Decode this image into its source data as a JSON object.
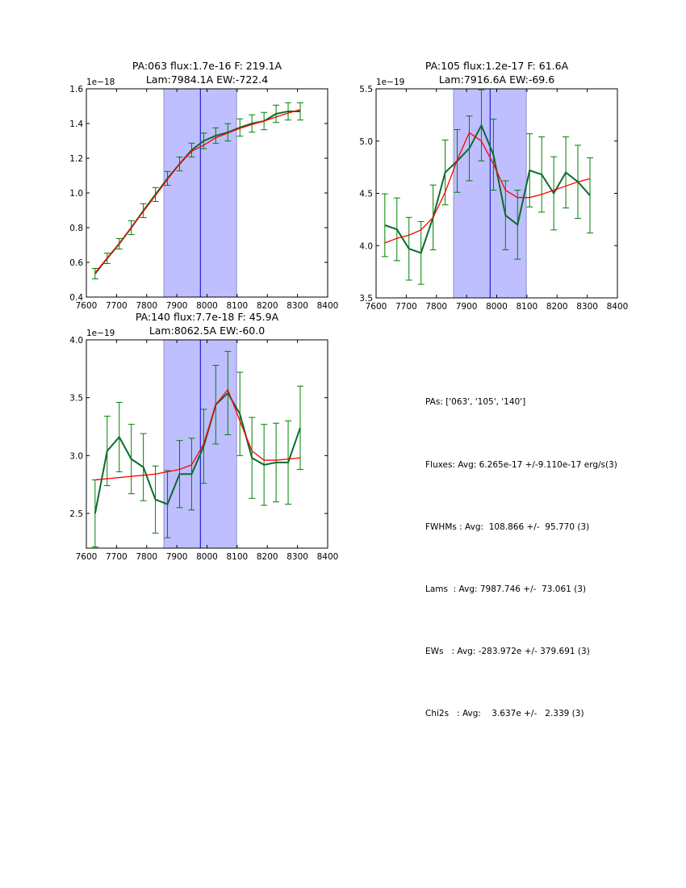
{
  "colors": {
    "band": "#bfbfff",
    "band_edge": "#8f8fcf",
    "marker_line": "#0000c8",
    "data_line": "#0a6b2e",
    "errorbar": "#008000",
    "fit_line": "#ff0000"
  },
  "chart_data": [
    {
      "type": "line",
      "title_line1": "PA:063 flux:1.7e-16 F: 219.1A",
      "title_line2": "Lam:7984.1A EW:-722.4",
      "y_offset_label": "1e−18",
      "xlim": [
        7600,
        8400
      ],
      "ylim": [
        0.4,
        1.6
      ],
      "xticks": [
        7600,
        7700,
        7800,
        7900,
        8000,
        8100,
        8200,
        8300,
        8400
      ],
      "xtick_labels": [
        "7600",
        "7700",
        "7800",
        "7900",
        "8000",
        "8100",
        "8200",
        "8300",
        "8400"
      ],
      "yticks": [
        0.4,
        0.6,
        0.8,
        1.0,
        1.2,
        1.4,
        1.6
      ],
      "ytick_labels": [
        "0.4",
        "0.6",
        "0.8",
        "1.0",
        "1.2",
        "1.4",
        "1.6"
      ],
      "band": [
        7857,
        8098
      ],
      "marker_x": 7978,
      "x": [
        7629,
        7669,
        7709,
        7749,
        7789,
        7829,
        7869,
        7909,
        7949,
        7989,
        8029,
        8069,
        8109,
        8149,
        8189,
        8229,
        8269,
        8309
      ],
      "series": [
        {
          "name": "data",
          "values": [
            0.535,
            0.623,
            0.707,
            0.8,
            0.898,
            0.991,
            1.084,
            1.167,
            1.247,
            1.3,
            1.33,
            1.349,
            1.377,
            1.4,
            1.414,
            1.456,
            1.47,
            1.47
          ],
          "errors": [
            0.03,
            0.03,
            0.03,
            0.04,
            0.04,
            0.04,
            0.04,
            0.04,
            0.04,
            0.045,
            0.045,
            0.05,
            0.05,
            0.05,
            0.05,
            0.05,
            0.05,
            0.05
          ]
        },
        {
          "name": "fit",
          "values": [
            0.54,
            0.625,
            0.71,
            0.8,
            0.893,
            0.985,
            1.078,
            1.165,
            1.24,
            1.275,
            1.318,
            1.345,
            1.372,
            1.394,
            1.414,
            1.438,
            1.46,
            1.48
          ]
        }
      ]
    },
    {
      "type": "line",
      "title_line1": "PA:105 flux:1.2e-17 F: 61.6A",
      "title_line2": "Lam:7916.6A EW:-69.6",
      "y_offset_label": "1e−19",
      "xlim": [
        7600,
        8400
      ],
      "ylim": [
        3.5,
        5.5
      ],
      "xticks": [
        7600,
        7700,
        7800,
        7900,
        8000,
        8100,
        8200,
        8300,
        8400
      ],
      "xtick_labels": [
        "7600",
        "7700",
        "7800",
        "7900",
        "8000",
        "8100",
        "8200",
        "8300",
        "8400"
      ],
      "yticks": [
        3.5,
        4.0,
        4.5,
        5.0,
        5.5
      ],
      "ytick_labels": [
        "3.5",
        "4.0",
        "4.5",
        "5.0",
        "5.5"
      ],
      "band": [
        7857,
        8098
      ],
      "marker_x": 7978,
      "x": [
        7629,
        7669,
        7709,
        7749,
        7789,
        7829,
        7869,
        7909,
        7949,
        7989,
        8029,
        8069,
        8109,
        8149,
        8189,
        8229,
        8269,
        8309
      ],
      "series": [
        {
          "name": "data",
          "values": [
            4.195,
            4.156,
            3.97,
            3.93,
            4.27,
            4.7,
            4.81,
            4.93,
            5.15,
            4.87,
            4.29,
            4.2,
            4.72,
            4.68,
            4.5,
            4.7,
            4.61,
            4.48
          ],
          "errors": [
            0.3,
            0.3,
            0.3,
            0.3,
            0.31,
            0.31,
            0.3,
            0.31,
            0.34,
            0.34,
            0.33,
            0.33,
            0.35,
            0.36,
            0.35,
            0.34,
            0.35,
            0.36
          ]
        },
        {
          "name": "fit",
          "values": [
            4.025,
            4.07,
            4.1,
            4.15,
            4.27,
            4.51,
            4.82,
            5.08,
            5.0,
            4.78,
            4.53,
            4.46,
            4.46,
            4.49,
            4.53,
            4.57,
            4.61,
            4.64
          ]
        }
      ]
    },
    {
      "type": "line",
      "title_line1": "PA:140 flux:7.7e-18 F: 45.9A",
      "title_line2": "Lam:8062.5A EW:-60.0",
      "y_offset_label": "1e−19",
      "xlim": [
        7600,
        8400
      ],
      "ylim": [
        2.2,
        4.0
      ],
      "xticks": [
        7600,
        7700,
        7800,
        7900,
        8000,
        8100,
        8200,
        8300,
        8400
      ],
      "xtick_labels": [
        "7600",
        "7700",
        "7800",
        "7900",
        "8000",
        "8100",
        "8200",
        "8300",
        "8400"
      ],
      "yticks": [
        2.5,
        3.0,
        3.5,
        4.0
      ],
      "ytick_labels": [
        "2.5",
        "3.0",
        "3.5",
        "4.0"
      ],
      "band": [
        7857,
        8098
      ],
      "marker_x": 7978,
      "x": [
        7629,
        7669,
        7709,
        7749,
        7789,
        7829,
        7869,
        7909,
        7949,
        7989,
        8029,
        8069,
        8109,
        8149,
        8189,
        8229,
        8269,
        8309
      ],
      "series": [
        {
          "name": "data",
          "values": [
            2.5,
            3.04,
            3.16,
            2.97,
            2.9,
            2.62,
            2.58,
            2.84,
            2.84,
            3.08,
            3.44,
            3.54,
            3.36,
            2.98,
            2.92,
            2.94,
            2.94,
            3.24
          ],
          "errors": [
            0.29,
            0.3,
            0.3,
            0.3,
            0.29,
            0.29,
            0.29,
            0.29,
            0.31,
            0.32,
            0.34,
            0.36,
            0.36,
            0.35,
            0.35,
            0.34,
            0.36,
            0.36
          ]
        },
        {
          "name": "fit",
          "values": [
            2.79,
            2.8,
            2.81,
            2.82,
            2.83,
            2.84,
            2.86,
            2.88,
            2.92,
            3.1,
            3.44,
            3.57,
            3.3,
            3.04,
            2.96,
            2.96,
            2.97,
            2.98
          ]
        }
      ]
    }
  ],
  "stats": {
    "lines": [
      "PAs: ['063', '105', '140']",
      "Fluxes: Avg: 6.265e-17 +/-9.110e-17 erg/s(3)",
      "FWHMs : Avg:  108.866 +/-  95.770 (3)",
      "Lams  : Avg: 7987.746 +/-  73.061 (3)",
      "EWs   : Avg: -283.972e +/- 379.691 (3)",
      "Chi2s   : Avg:    3.637e +/-   2.339 (3)"
    ]
  }
}
